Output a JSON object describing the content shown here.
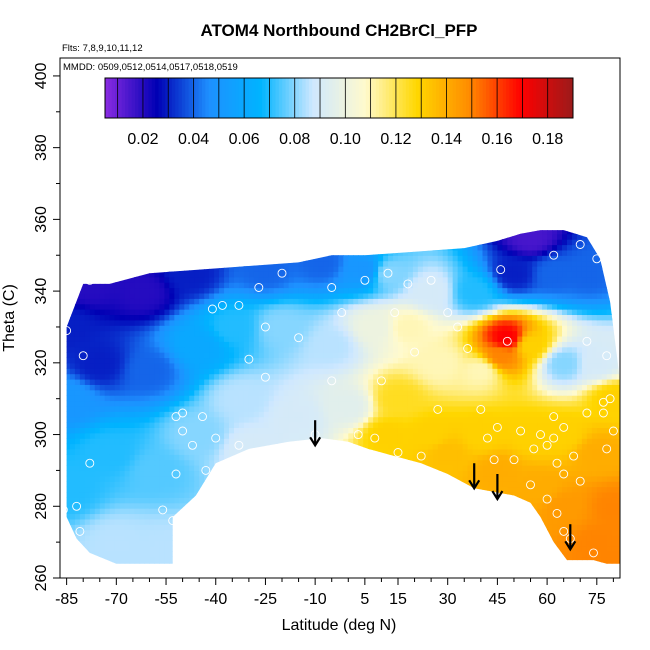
{
  "chart_data": {
    "type": "heatmap",
    "title": "ATOM4 Northbound CH2BrCl_PFP",
    "annotation_flights": "Flts: 7,8,9,10,11,12",
    "annotation_dates": "MMDD: 0509,0512,0514,0517,0518,0519",
    "xlabel": "Latitude (deg N)",
    "ylabel": "Theta (C)",
    "xlim": [
      -87,
      82
    ],
    "ylim": [
      260,
      405
    ],
    "x_ticks": [
      -85,
      -70,
      -55,
      -40,
      -25,
      -10,
      5,
      15,
      30,
      45,
      60,
      75
    ],
    "x_tick_labels": [
      "-85",
      "-70",
      "-55",
      "-40",
      "-25",
      "-10",
      "5",
      "15",
      "30",
      "45",
      "60",
      "75"
    ],
    "y_ticks": [
      260,
      280,
      300,
      320,
      340,
      360,
      380,
      400
    ],
    "y_tick_labels": [
      "260",
      "280",
      "300",
      "320",
      "340",
      "360",
      "380",
      "400"
    ],
    "colorbar": {
      "range": [
        0.005,
        0.19
      ],
      "ticks": [
        0.02,
        0.04,
        0.06,
        0.08,
        0.1,
        0.12,
        0.14,
        0.16,
        0.18
      ],
      "tick_labels": [
        "0.02",
        "0.04",
        "0.06",
        "0.08",
        "0.10",
        "0.12",
        "0.14",
        "0.16",
        "0.18"
      ],
      "colors": [
        "#8a2be2",
        "#0000b4",
        "#1e90ff",
        "#00b4ff",
        "#cfe8ff",
        "#fffacd",
        "#ffd700",
        "#ff8c00",
        "#ff0000",
        "#9b1b1b"
      ],
      "placement": "top-inside"
    },
    "field_points": [
      {
        "lat": -85,
        "theta": 330,
        "value": 0.03
      },
      {
        "lat": -85,
        "theta": 310,
        "value": 0.05
      },
      {
        "lat": -85,
        "theta": 285,
        "value": 0.07
      },
      {
        "lat": -78,
        "theta": 342,
        "value": 0.02
      },
      {
        "lat": -75,
        "theta": 320,
        "value": 0.03
      },
      {
        "lat": -72,
        "theta": 295,
        "value": 0.07
      },
      {
        "lat": -70,
        "theta": 270,
        "value": 0.085
      },
      {
        "lat": -62,
        "theta": 340,
        "value": 0.02
      },
      {
        "lat": -60,
        "theta": 318,
        "value": 0.04
      },
      {
        "lat": -58,
        "theta": 290,
        "value": 0.075
      },
      {
        "lat": -55,
        "theta": 268,
        "value": 0.085
      },
      {
        "lat": -48,
        "theta": 345,
        "value": 0.03
      },
      {
        "lat": -45,
        "theta": 325,
        "value": 0.06
      },
      {
        "lat": -45,
        "theta": 300,
        "value": 0.08
      },
      {
        "lat": -35,
        "theta": 330,
        "value": 0.07
      },
      {
        "lat": -32,
        "theta": 310,
        "value": 0.085
      },
      {
        "lat": -30,
        "theta": 296,
        "value": 0.09
      },
      {
        "lat": -25,
        "theta": 346,
        "value": 0.04
      },
      {
        "lat": -20,
        "theta": 330,
        "value": 0.08
      },
      {
        "lat": -15,
        "theta": 305,
        "value": 0.09
      },
      {
        "lat": -8,
        "theta": 348,
        "value": 0.04
      },
      {
        "lat": -5,
        "theta": 325,
        "value": 0.085
      },
      {
        "lat": 0,
        "theta": 308,
        "value": 0.095
      },
      {
        "lat": 5,
        "theta": 346,
        "value": 0.05
      },
      {
        "lat": 8,
        "theta": 330,
        "value": 0.1
      },
      {
        "lat": 12,
        "theta": 345,
        "value": 0.08
      },
      {
        "lat": 18,
        "theta": 330,
        "value": 0.11
      },
      {
        "lat": 15,
        "theta": 310,
        "value": 0.125
      },
      {
        "lat": 12,
        "theta": 300,
        "value": 0.13
      },
      {
        "lat": 25,
        "theta": 340,
        "value": 0.09
      },
      {
        "lat": 28,
        "theta": 320,
        "value": 0.11
      },
      {
        "lat": 25,
        "theta": 300,
        "value": 0.13
      },
      {
        "lat": 30,
        "theta": 295,
        "value": 0.135
      },
      {
        "lat": 38,
        "theta": 340,
        "value": 0.07
      },
      {
        "lat": 40,
        "theta": 318,
        "value": 0.11
      },
      {
        "lat": 40,
        "theta": 300,
        "value": 0.13
      },
      {
        "lat": 45,
        "theta": 290,
        "value": 0.14
      },
      {
        "lat": 48,
        "theta": 327,
        "value": 0.17
      },
      {
        "lat": 46,
        "theta": 322,
        "value": 0.15
      },
      {
        "lat": 50,
        "theta": 345,
        "value": 0.03
      },
      {
        "lat": 55,
        "theta": 355,
        "value": 0.015
      },
      {
        "lat": 55,
        "theta": 325,
        "value": 0.13
      },
      {
        "lat": 55,
        "theta": 300,
        "value": 0.13
      },
      {
        "lat": 58,
        "theta": 285,
        "value": 0.14
      },
      {
        "lat": 62,
        "theta": 345,
        "value": 0.04
      },
      {
        "lat": 65,
        "theta": 320,
        "value": 0.08
      },
      {
        "lat": 65,
        "theta": 300,
        "value": 0.13
      },
      {
        "lat": 65,
        "theta": 280,
        "value": 0.145
      },
      {
        "lat": 72,
        "theta": 345,
        "value": 0.04
      },
      {
        "lat": 75,
        "theta": 320,
        "value": 0.09
      },
      {
        "lat": 75,
        "theta": 295,
        "value": 0.14
      },
      {
        "lat": 75,
        "theta": 270,
        "value": 0.15
      },
      {
        "lat": 80,
        "theta": 310,
        "value": 0.13
      },
      {
        "lat": 80,
        "theta": 280,
        "value": 0.15
      },
      {
        "lat": 80,
        "theta": 265,
        "value": 0.15
      }
    ],
    "domain_top": [
      [
        -85,
        330
      ],
      [
        -80,
        342
      ],
      [
        -72,
        342
      ],
      [
        -60,
        345
      ],
      [
        -45,
        346
      ],
      [
        -30,
        347
      ],
      [
        -15,
        348
      ],
      [
        -5,
        350
      ],
      [
        5,
        350
      ],
      [
        20,
        351
      ],
      [
        35,
        352
      ],
      [
        45,
        354
      ],
      [
        52,
        356
      ],
      [
        58,
        357
      ],
      [
        65,
        357
      ],
      [
        72,
        355
      ],
      [
        76,
        349
      ],
      [
        79,
        337
      ],
      [
        82,
        315
      ]
    ],
    "domain_bottom": [
      [
        -85,
        277
      ],
      [
        -82,
        271
      ],
      [
        -78,
        267
      ],
      [
        -70,
        264
      ],
      [
        -62,
        264
      ],
      [
        -55,
        264
      ],
      [
        -53,
        264
      ],
      [
        -53,
        277
      ],
      [
        -46,
        283
      ],
      [
        -40,
        292
      ],
      [
        -30,
        296
      ],
      [
        -18,
        298
      ],
      [
        -8,
        299
      ],
      [
        0,
        298
      ],
      [
        6,
        296
      ],
      [
        14,
        294
      ],
      [
        22,
        292
      ],
      [
        30,
        289
      ],
      [
        38,
        285
      ],
      [
        44,
        284
      ],
      [
        50,
        283
      ],
      [
        55,
        281
      ],
      [
        58,
        277
      ],
      [
        62,
        270
      ],
      [
        66,
        265
      ],
      [
        70,
        265
      ],
      [
        74,
        265
      ],
      [
        78,
        264
      ],
      [
        82,
        264
      ]
    ],
    "sample_points": [
      {
        "lat": -85,
        "theta": 329
      },
      {
        "lat": -80,
        "theta": 322
      },
      {
        "lat": -78,
        "theta": 343
      },
      {
        "lat": -86,
        "theta": 279
      },
      {
        "lat": -82,
        "theta": 280
      },
      {
        "lat": -81,
        "theta": 273
      },
      {
        "lat": -78,
        "theta": 292
      },
      {
        "lat": -56,
        "theta": 279
      },
      {
        "lat": -53,
        "theta": 276
      },
      {
        "lat": -52,
        "theta": 289
      },
      {
        "lat": -50,
        "theta": 306
      },
      {
        "lat": -50,
        "theta": 301
      },
      {
        "lat": -52,
        "theta": 305
      },
      {
        "lat": -47,
        "theta": 297
      },
      {
        "lat": -44,
        "theta": 305
      },
      {
        "lat": -43,
        "theta": 290
      },
      {
        "lat": -40,
        "theta": 299
      },
      {
        "lat": -36,
        "theta": 292
      },
      {
        "lat": -33,
        "theta": 297
      },
      {
        "lat": -41,
        "theta": 335
      },
      {
        "lat": -38,
        "theta": 336
      },
      {
        "lat": -33,
        "theta": 336
      },
      {
        "lat": -30,
        "theta": 321
      },
      {
        "lat": -25,
        "theta": 316
      },
      {
        "lat": -27,
        "theta": 341
      },
      {
        "lat": -25,
        "theta": 330
      },
      {
        "lat": -20,
        "theta": 345
      },
      {
        "lat": -15,
        "theta": 327
      },
      {
        "lat": -10,
        "theta": 300
      },
      {
        "lat": -5,
        "theta": 341
      },
      {
        "lat": -5,
        "theta": 315
      },
      {
        "lat": -2,
        "theta": 334
      },
      {
        "lat": 3,
        "theta": 300
      },
      {
        "lat": 5,
        "theta": 343
      },
      {
        "lat": 8,
        "theta": 299
      },
      {
        "lat": 10,
        "theta": 315
      },
      {
        "lat": 12,
        "theta": 345
      },
      {
        "lat": 14,
        "theta": 334
      },
      {
        "lat": 15,
        "theta": 295
      },
      {
        "lat": 18,
        "theta": 342
      },
      {
        "lat": 20,
        "theta": 323
      },
      {
        "lat": 22,
        "theta": 294
      },
      {
        "lat": 25,
        "theta": 343
      },
      {
        "lat": 27,
        "theta": 307
      },
      {
        "lat": 30,
        "theta": 334
      },
      {
        "lat": 33,
        "theta": 330
      },
      {
        "lat": 36,
        "theta": 324
      },
      {
        "lat": 40,
        "theta": 307
      },
      {
        "lat": 42,
        "theta": 299
      },
      {
        "lat": 44,
        "theta": 293
      },
      {
        "lat": 45,
        "theta": 302
      },
      {
        "lat": 46,
        "theta": 346
      },
      {
        "lat": 48,
        "theta": 326
      },
      {
        "lat": 50,
        "theta": 293
      },
      {
        "lat": 52,
        "theta": 301
      },
      {
        "lat": 55,
        "theta": 286
      },
      {
        "lat": 56,
        "theta": 296
      },
      {
        "lat": 58,
        "theta": 300
      },
      {
        "lat": 60,
        "theta": 297
      },
      {
        "lat": 60,
        "theta": 282
      },
      {
        "lat": 62,
        "theta": 305
      },
      {
        "lat": 62,
        "theta": 299
      },
      {
        "lat": 63,
        "theta": 292
      },
      {
        "lat": 65,
        "theta": 302
      },
      {
        "lat": 65,
        "theta": 289
      },
      {
        "lat": 63,
        "theta": 278
      },
      {
        "lat": 65,
        "theta": 273
      },
      {
        "lat": 67,
        "theta": 271
      },
      {
        "lat": 68,
        "theta": 294
      },
      {
        "lat": 70,
        "theta": 287
      },
      {
        "lat": 72,
        "theta": 306
      },
      {
        "lat": 72,
        "theta": 326
      },
      {
        "lat": 75,
        "theta": 349
      },
      {
        "lat": 77,
        "theta": 306
      },
      {
        "lat": 77,
        "theta": 309
      },
      {
        "lat": 78,
        "theta": 322
      },
      {
        "lat": 78,
        "theta": 296
      },
      {
        "lat": 79,
        "theta": 310
      },
      {
        "lat": 80,
        "theta": 301
      },
      {
        "lat": 74,
        "theta": 267
      },
      {
        "lat": 62,
        "theta": 350
      },
      {
        "lat": 70,
        "theta": 353
      }
    ],
    "arrows": [
      {
        "lat": -10,
        "theta_top": 304,
        "theta_bottom": 297
      },
      {
        "lat": 38,
        "theta_top": 292,
        "theta_bottom": 285
      },
      {
        "lat": 45,
        "theta_top": 289,
        "theta_bottom": 282
      },
      {
        "lat": 67,
        "theta_top": 275,
        "theta_bottom": 268
      }
    ],
    "grid": false,
    "legend": "none"
  }
}
